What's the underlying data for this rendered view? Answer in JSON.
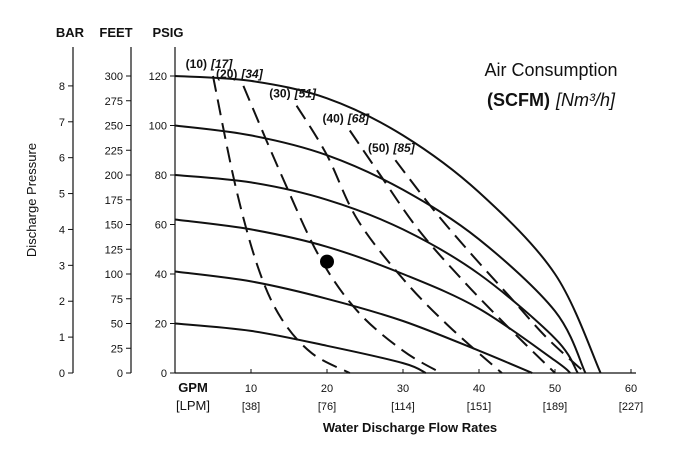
{
  "chart_data": {
    "type": "line",
    "xlabel": "Water Discharge Flow Rates",
    "ylabel": "Discharge Pressure",
    "x_unit_label": "GPM",
    "x_alt_unit_label": "[LPM]",
    "xlim": [
      0,
      60
    ],
    "ylim": [
      0,
      125
    ],
    "x_ticks": [
      {
        "gpm": 10,
        "label": "10",
        "lpm": "[38]"
      },
      {
        "gpm": 20,
        "label": "20",
        "lpm": "[76]"
      },
      {
        "gpm": 30,
        "label": "30",
        "lpm": "[114]"
      },
      {
        "gpm": 40,
        "label": "40",
        "lpm": "[151]"
      },
      {
        "gpm": 50,
        "label": "50",
        "lpm": "[189]"
      },
      {
        "gpm": 60,
        "label": "60",
        "lpm": "[227]"
      }
    ],
    "y_axes": [
      {
        "header": "BAR",
        "ticks": [
          {
            "label": "0",
            "psig": 0
          },
          {
            "label": "1",
            "psig": 14.5
          },
          {
            "label": "2",
            "psig": 29
          },
          {
            "label": "3",
            "psig": 43.5
          },
          {
            "label": "4",
            "psig": 58
          },
          {
            "label": "5",
            "psig": 72.5
          },
          {
            "label": "6",
            "psig": 87
          },
          {
            "label": "7",
            "psig": 101.5
          },
          {
            "label": "8",
            "psig": 116
          }
        ]
      },
      {
        "header": "FEET",
        "ticks": [
          {
            "label": "0",
            "psig": 0
          },
          {
            "label": "25",
            "psig": 10
          },
          {
            "label": "50",
            "psig": 20
          },
          {
            "label": "75",
            "psig": 30
          },
          {
            "label": "100",
            "psig": 40
          },
          {
            "label": "125",
            "psig": 50
          },
          {
            "label": "150",
            "psig": 60
          },
          {
            "label": "175",
            "psig": 70
          },
          {
            "label": "200",
            "psig": 80
          },
          {
            "label": "225",
            "psig": 90
          },
          {
            "label": "250",
            "psig": 100
          },
          {
            "label": "275",
            "psig": 110
          },
          {
            "label": "300",
            "psig": 120
          }
        ]
      },
      {
        "header": "PSIG",
        "ticks": [
          {
            "label": "0",
            "psig": 0
          },
          {
            "label": "20",
            "psig": 20
          },
          {
            "label": "40",
            "psig": 40
          },
          {
            "label": "60",
            "psig": 60
          },
          {
            "label": "80",
            "psig": 80
          },
          {
            "label": "100",
            "psig": 100
          },
          {
            "label": "120",
            "psig": 120
          }
        ]
      }
    ],
    "legend": {
      "line1": "Air Consumption",
      "line2_bold": "(SCFM)",
      "line2_italic": "[Nm³/h]"
    },
    "pressure_curves": [
      {
        "points": [
          [
            0,
            120
          ],
          [
            10,
            118
          ],
          [
            20,
            111
          ],
          [
            30,
            96
          ],
          [
            40,
            73
          ],
          [
            50,
            40
          ],
          [
            56,
            0
          ]
        ]
      },
      {
        "points": [
          [
            0,
            100
          ],
          [
            10,
            96
          ],
          [
            20,
            88
          ],
          [
            30,
            74
          ],
          [
            40,
            54
          ],
          [
            50,
            25
          ],
          [
            54,
            0
          ]
        ]
      },
      {
        "points": [
          [
            0,
            80
          ],
          [
            10,
            77
          ],
          [
            20,
            70
          ],
          [
            30,
            58
          ],
          [
            40,
            40
          ],
          [
            50,
            14
          ],
          [
            53,
            0
          ]
        ]
      },
      {
        "points": [
          [
            0,
            62
          ],
          [
            10,
            58
          ],
          [
            20,
            51
          ],
          [
            30,
            40
          ],
          [
            40,
            26
          ],
          [
            50,
            5
          ],
          [
            52,
            0
          ]
        ]
      },
      {
        "points": [
          [
            0,
            41
          ],
          [
            10,
            37
          ],
          [
            20,
            30
          ],
          [
            30,
            21
          ],
          [
            40,
            9
          ],
          [
            47,
            0
          ]
        ]
      },
      {
        "points": [
          [
            0,
            20
          ],
          [
            10,
            17
          ],
          [
            20,
            11
          ],
          [
            30,
            4
          ],
          [
            33,
            0
          ]
        ]
      }
    ],
    "air_consumption_curves": [
      {
        "label": "(10)",
        "label_metric": "[17]",
        "points": [
          [
            5,
            120
          ],
          [
            8,
            75
          ],
          [
            11,
            42
          ],
          [
            14,
            22
          ],
          [
            18,
            8
          ],
          [
            23,
            0
          ]
        ]
      },
      {
        "label": "(20)",
        "label_metric": "[34]",
        "points": [
          [
            9,
            116
          ],
          [
            14,
            80
          ],
          [
            19,
            47
          ],
          [
            24,
            25
          ],
          [
            30,
            9
          ],
          [
            35,
            0
          ]
        ]
      },
      {
        "label": "(30)",
        "label_metric": "[51]",
        "points": [
          [
            16,
            108
          ],
          [
            20,
            88
          ],
          [
            24,
            62
          ],
          [
            30,
            38
          ],
          [
            36,
            19
          ],
          [
            43,
            0
          ]
        ]
      },
      {
        "label": "(40)",
        "label_metric": "[68]",
        "points": [
          [
            23,
            98
          ],
          [
            27,
            80
          ],
          [
            32,
            58
          ],
          [
            38,
            37
          ],
          [
            44,
            18
          ],
          [
            50,
            0
          ]
        ]
      },
      {
        "label": "(50)",
        "label_metric": "[85]",
        "points": [
          [
            29,
            86
          ],
          [
            34,
            66
          ],
          [
            39,
            48
          ],
          [
            44,
            31
          ],
          [
            49,
            14
          ],
          [
            54,
            0
          ]
        ]
      }
    ],
    "marker_point": {
      "x": 20,
      "y": 45
    },
    "grid": false
  }
}
